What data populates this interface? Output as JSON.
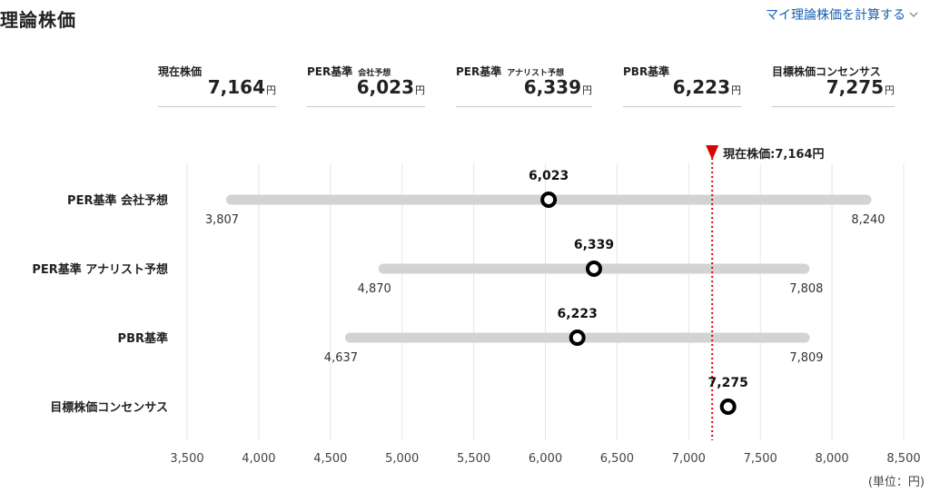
{
  "header": {
    "title": "理論株価",
    "calc_link": "マイ理論株価を計算する"
  },
  "summary": [
    {
      "label": "現在株価",
      "sub": "",
      "value": "7,164",
      "unit": "円"
    },
    {
      "label": "PER基準",
      "sub": "会社予想",
      "value": "6,023",
      "unit": "円"
    },
    {
      "label": "PER基準",
      "sub": "アナリスト予想",
      "value": "6,339",
      "unit": "円"
    },
    {
      "label": "PBR基準",
      "sub": "",
      "value": "6,223",
      "unit": "円"
    },
    {
      "label": "目標株価コンセンサス",
      "sub": "",
      "value": "7,275",
      "unit": "円"
    }
  ],
  "chart_data": {
    "type": "range-dot",
    "categories": [
      "PER基準 会社予想",
      "PER基準 アナリスト予想",
      "PBR基準",
      "目標株価コンセンサス"
    ],
    "series": [
      {
        "label": "6,023",
        "value": 6023,
        "low": 3807,
        "high": 8240,
        "low_label": "3,807",
        "high_label": "8,240"
      },
      {
        "label": "6,339",
        "value": 6339,
        "low": 4870,
        "high": 7808,
        "low_label": "4,870",
        "high_label": "7,808"
      },
      {
        "label": "6,223",
        "value": 6223,
        "low": 4637,
        "high": 7809,
        "low_label": "4,637",
        "high_label": "7,809"
      },
      {
        "label": "7,275",
        "value": 7275
      }
    ],
    "reference_line": {
      "value": 7164,
      "label": "現在株価:7,164円",
      "color": "#e00000"
    },
    "x_ticks": [
      3500,
      4000,
      4500,
      5000,
      5500,
      6000,
      6500,
      7000,
      7500,
      8000,
      8500
    ],
    "x_tick_labels": [
      "3,500",
      "4,000",
      "4,500",
      "5,000",
      "5,500",
      "6,000",
      "6,500",
      "7,000",
      "7,500",
      "8,000",
      "8,500"
    ],
    "xlim": [
      3500,
      8500
    ],
    "unit_label": "(単位：円)",
    "grid": true,
    "colors": {
      "range_bar": "#d3d3d3",
      "grid": "#e6e6e6",
      "marker": "#000000"
    }
  }
}
